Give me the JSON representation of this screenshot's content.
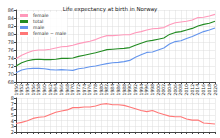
{
  "chart_data": [
    {
      "type": "line",
      "title": "Life expectancy at birth in Norway",
      "x": [
        1950,
        1952,
        1954,
        1956,
        1958,
        1960,
        1962,
        1964,
        1966,
        1968,
        1970,
        1972,
        1974,
        1976,
        1978,
        1980,
        1982,
        1984,
        1986,
        1988,
        1990,
        1992,
        1994,
        1996,
        1998,
        2000,
        2002,
        2004,
        2006,
        2008,
        2010,
        2012,
        2014,
        2016,
        2018,
        2020
      ],
      "xlim": [
        1950,
        2020
      ],
      "xticks": [
        1950,
        1952,
        1954,
        1956,
        1958,
        1960,
        1962,
        1964,
        1966,
        1968,
        1970,
        1972,
        1974,
        1976,
        1978,
        1980,
        1982,
        1984,
        1986,
        1988,
        1990,
        1992,
        1994,
        1996,
        1998,
        2000,
        2002,
        2004,
        2006,
        2008,
        2010,
        2012,
        2014,
        2016,
        2018,
        2020
      ],
      "ylim": [
        68,
        86
      ],
      "yticks": [
        68,
        70,
        72,
        74,
        76,
        78,
        80,
        82,
        84,
        86
      ],
      "grid": true,
      "legend": "upper left",
      "series": [
        {
          "name": "female",
          "color": "#ff99bb",
          "values": [
            73.8,
            74.7,
            75.3,
            75.8,
            76.0,
            76.0,
            76.2,
            76.5,
            76.8,
            76.9,
            77.2,
            77.6,
            77.9,
            78.2,
            78.6,
            79.2,
            79.6,
            79.6,
            79.7,
            79.8,
            79.8,
            80.3,
            80.6,
            81.0,
            81.3,
            81.4,
            81.6,
            82.3,
            82.8,
            83.0,
            83.2,
            83.5,
            84.1,
            84.2,
            84.5,
            84.9
          ]
        },
        {
          "name": "total",
          "color": "#228b22",
          "values": [
            72.0,
            72.8,
            73.3,
            73.6,
            73.7,
            73.6,
            73.6,
            73.7,
            73.9,
            73.9,
            74.0,
            74.4,
            74.7,
            75.0,
            75.3,
            75.7,
            76.1,
            76.2,
            76.3,
            76.4,
            76.6,
            77.2,
            77.7,
            78.2,
            78.4,
            78.7,
            79.0,
            79.9,
            80.4,
            80.6,
            81.0,
            81.4,
            82.0,
            82.4,
            82.7,
            83.2
          ]
        },
        {
          "name": "male",
          "color": "#6495ed",
          "values": [
            70.3,
            71.0,
            71.3,
            71.4,
            71.4,
            71.3,
            71.1,
            71.0,
            71.1,
            71.0,
            70.9,
            71.3,
            71.5,
            71.8,
            72.0,
            72.3,
            72.6,
            72.8,
            72.9,
            73.1,
            73.4,
            74.2,
            74.8,
            75.4,
            75.5,
            76.0,
            76.5,
            77.5,
            78.1,
            78.3,
            78.9,
            79.4,
            80.0,
            80.6,
            81.0,
            81.5
          ]
        }
      ]
    },
    {
      "type": "line",
      "x": [
        1950,
        1952,
        1954,
        1956,
        1958,
        1960,
        1962,
        1964,
        1966,
        1968,
        1970,
        1972,
        1974,
        1976,
        1978,
        1980,
        1982,
        1984,
        1986,
        1988,
        1990,
        1992,
        1994,
        1996,
        1998,
        2000,
        2002,
        2004,
        2006,
        2008,
        2010,
        2012,
        2014,
        2016,
        2018,
        2020
      ],
      "xlim": [
        1950,
        2020
      ],
      "xticks": [
        1950,
        1952,
        1954,
        1956,
        1958,
        1960,
        1962,
        1964,
        1966,
        1968,
        1970,
        1972,
        1974,
        1976,
        1978,
        1980,
        1982,
        1984,
        1986,
        1988,
        1990,
        1992,
        1994,
        1996,
        1998,
        2000,
        2002,
        2004,
        2006,
        2008,
        2010,
        2012,
        2014,
        2016,
        2018,
        2020
      ],
      "ylim": [
        2,
        8
      ],
      "yticks": [
        2,
        3,
        4,
        5,
        6,
        7,
        8
      ],
      "grid": true,
      "tick_labels": "y",
      "series": [
        {
          "name": "female − male",
          "color": "#ff7777",
          "values": [
            3.5,
            3.7,
            4.0,
            4.4,
            4.6,
            4.7,
            5.1,
            5.5,
            5.7,
            5.9,
            6.3,
            6.3,
            6.4,
            6.4,
            6.6,
            6.9,
            7.0,
            6.8,
            6.8,
            6.7,
            6.4,
            6.1,
            5.8,
            5.6,
            5.8,
            5.4,
            5.1,
            4.8,
            4.7,
            4.7,
            4.3,
            4.1,
            4.1,
            3.6,
            3.5,
            3.4
          ]
        }
      ]
    }
  ]
}
